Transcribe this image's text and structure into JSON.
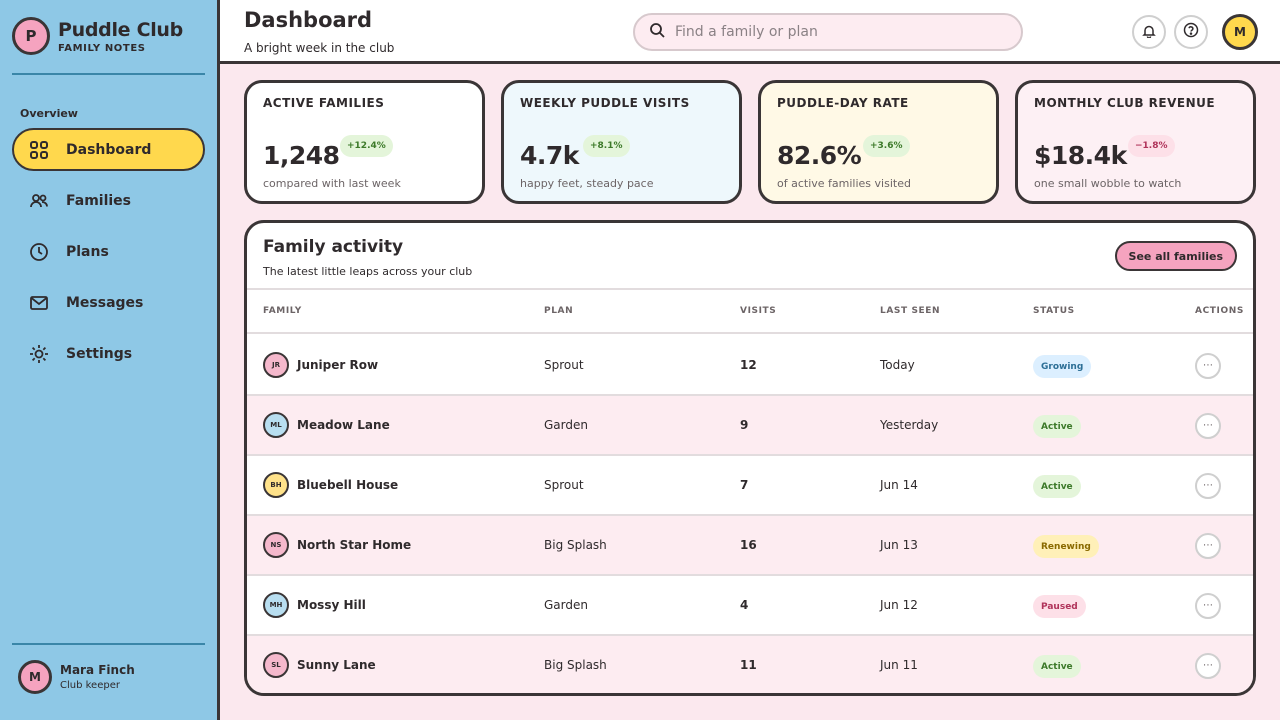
{
  "brand": {
    "logo_letter": "P",
    "title": "Puddle Club",
    "subtitle": "FAMILY NOTES"
  },
  "sidebar": {
    "section_label": "Overview",
    "items": [
      {
        "label": "Dashboard",
        "icon": "grid-icon",
        "active": true
      },
      {
        "label": "Families",
        "icon": "users-icon",
        "active": false
      },
      {
        "label": "Plans",
        "icon": "clock-icon",
        "active": false
      },
      {
        "label": "Messages",
        "icon": "mail-icon",
        "active": false
      },
      {
        "label": "Settings",
        "icon": "sun-gear-icon",
        "active": false
      }
    ],
    "user": {
      "initial": "M",
      "name": "Mara Finch",
      "role": "Club keeper"
    }
  },
  "header": {
    "title": "Dashboard",
    "subtitle": "A bright week in the club",
    "search_placeholder": "Find a family or plan",
    "avatar_initial": "M"
  },
  "stats": [
    {
      "label": "ACTIVE FAMILIES",
      "value": "1,248",
      "delta": "+12.4%",
      "note": "compared with last week",
      "trend": "up",
      "bg": "#ffffff"
    },
    {
      "label": "WEEKLY PUDDLE VISITS",
      "value": "4.7k",
      "delta": "+8.1%",
      "note": "happy feet, steady pace",
      "trend": "up",
      "bg": "#eef8fc"
    },
    {
      "label": "PUDDLE-DAY RATE",
      "value": "82.6%",
      "delta": "+3.6%",
      "note": "of active families visited",
      "trend": "up",
      "bg": "#fff9e6"
    },
    {
      "label": "MONTHLY CLUB REVENUE",
      "value": "$18.4k",
      "delta": "−1.8%",
      "note": "one small wobble to watch",
      "trend": "down",
      "bg": "#fdf0f4"
    }
  ],
  "activity": {
    "title": "Family activity",
    "subtitle": "The latest little leaps across your club",
    "see_all_label": "See all families",
    "columns": [
      "FAMILY",
      "PLAN",
      "VISITS",
      "LAST SEEN",
      "STATUS",
      "ACTIONS"
    ],
    "rows": [
      {
        "initials": "JR",
        "family": "Juniper Row",
        "plan": "Sprout",
        "visits": "12",
        "last_seen": "Today",
        "status": "Growing",
        "avatar_color": "#f5b8cc"
      },
      {
        "initials": "ML",
        "family": "Meadow Lane",
        "plan": "Garden",
        "visits": "9",
        "last_seen": "Yesterday",
        "status": "Active",
        "avatar_color": "#b8def0"
      },
      {
        "initials": "BH",
        "family": "Bluebell House",
        "plan": "Sprout",
        "visits": "7",
        "last_seen": "Jun 14",
        "status": "Active",
        "avatar_color": "#ffe28a"
      },
      {
        "initials": "NS",
        "family": "North Star Home",
        "plan": "Big Splash",
        "visits": "16",
        "last_seen": "Jun 13",
        "status": "Renewing",
        "avatar_color": "#f5b8cc"
      },
      {
        "initials": "MH",
        "family": "Mossy Hill",
        "plan": "Garden",
        "visits": "4",
        "last_seen": "Jun 12",
        "status": "Paused",
        "avatar_color": "#b8def0"
      },
      {
        "initials": "SL",
        "family": "Sunny Lane",
        "plan": "Big Splash",
        "visits": "11",
        "last_seen": "Jun 11",
        "status": "Active",
        "avatar_color": "#f5b8cc"
      }
    ],
    "action_glyph": "⋯"
  },
  "colors": {
    "accent_yellow": "#ffd84d",
    "accent_pink": "#f5a3bf",
    "sidebar_blue": "#8ec8e6",
    "status_growing": "#dcefff",
    "status_active": "#e4f5da",
    "status_renewing": "#fff0b8",
    "status_paused": "#fde0e8"
  }
}
